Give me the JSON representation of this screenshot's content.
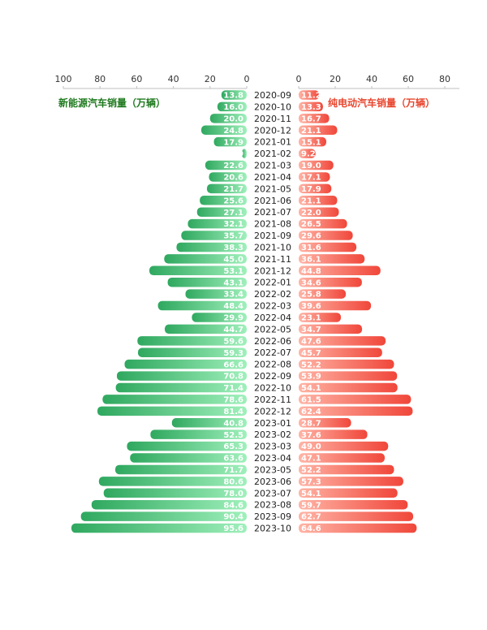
{
  "chart_data": {
    "type": "bar",
    "orientation": "horizontal-butterfly",
    "categories": [
      "2020-09",
      "2020-10",
      "2020-11",
      "2020-12",
      "2021-01",
      "2021-02",
      "2021-03",
      "2021-04",
      "2021-05",
      "2021-06",
      "2021-07",
      "2021-08",
      "2021-09",
      "2021-10",
      "2021-11",
      "2021-12",
      "2022-01",
      "2022-02",
      "2022-03",
      "2022-04",
      "2022-05",
      "2022-06",
      "2022-07",
      "2022-08",
      "2022-09",
      "2022-10",
      "2022-11",
      "2022-12",
      "2023-01",
      "2023-02",
      "2023-03",
      "2023-04",
      "2023-05",
      "2023-06",
      "2023-07",
      "2023-08",
      "2023-09",
      "2023-10"
    ],
    "series": [
      {
        "name": "新能源汽车销量（万辆）",
        "side": "left",
        "color": "#3dbb6e",
        "color_light": "#a6f0c0",
        "values": [
          13.8,
          16.0,
          20.0,
          24.8,
          17.9,
          1.0,
          22.6,
          20.6,
          21.7,
          25.6,
          27.1,
          32.1,
          35.7,
          38.3,
          45.0,
          53.1,
          43.1,
          33.4,
          48.4,
          29.9,
          44.7,
          59.6,
          59.3,
          66.6,
          70.8,
          71.4,
          78.6,
          81.4,
          40.8,
          52.5,
          65.3,
          63.6,
          71.7,
          80.6,
          78.0,
          84.6,
          90.4,
          95.6
        ]
      },
      {
        "name": "纯电动汽车销量（万辆）",
        "side": "right",
        "color": "#f05a4a",
        "color_light": "#ffb0a0",
        "values": [
          11.2,
          13.3,
          16.7,
          21.1,
          15.1,
          9.2,
          19.0,
          17.1,
          17.9,
          21.1,
          22.0,
          26.5,
          29.6,
          31.6,
          36.1,
          44.8,
          34.6,
          25.8,
          39.6,
          23.1,
          34.7,
          47.6,
          45.7,
          52.2,
          53.9,
          54.1,
          61.5,
          62.4,
          28.7,
          37.6,
          49.0,
          47.1,
          52.2,
          57.3,
          54.1,
          59.7,
          62.7,
          64.6
        ]
      }
    ],
    "left_axis": {
      "ticks": [
        "100",
        "80",
        "60",
        "40",
        "20",
        "0"
      ],
      "range": [
        0,
        100
      ],
      "reversed": true
    },
    "right_axis": {
      "ticks": [
        "0",
        "20",
        "40",
        "60",
        "80"
      ],
      "range": [
        0,
        80
      ]
    },
    "title_left": "新能源汽车销量（万辆）",
    "title_right": "纯电动汽车销量（万辆）",
    "title_left_color": "#1f7a1f",
    "title_right_color": "#e8462e",
    "grid": false,
    "legend": "none"
  }
}
